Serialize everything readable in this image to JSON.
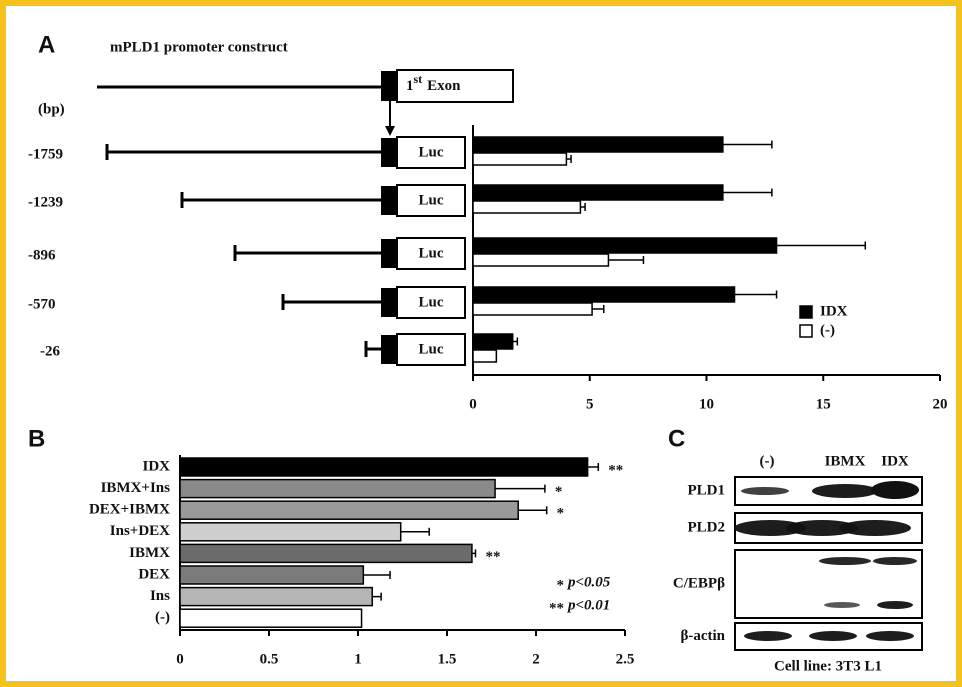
{
  "chart_data": [
    {
      "type": "hbar-grouped",
      "panel_label": "A",
      "construct_title": "mPLD1 promoter construct",
      "bp_unit": "(bp)",
      "exon_label": {
        "number": "1",
        "suffix": "st",
        "word": "Exon"
      },
      "reporter_label": "Luc",
      "categories": [
        "-1759",
        "-1239",
        "-896",
        "-570",
        "-26"
      ],
      "series": [
        {
          "name": "IDX",
          "color": "#000000",
          "values": [
            10.7,
            10.7,
            13.0,
            11.2,
            1.7
          ],
          "errors": [
            2.1,
            2.1,
            3.8,
            1.8,
            0.2
          ]
        },
        {
          "name": "(-)",
          "color": "#ffffff",
          "values": [
            4.0,
            4.6,
            5.8,
            5.1,
            1.0
          ],
          "errors": [
            0.2,
            0.2,
            1.5,
            0.5,
            0
          ]
        }
      ],
      "xlim": [
        0,
        20
      ],
      "xticks": [
        0,
        5,
        10,
        15,
        20
      ]
    },
    {
      "type": "hbar",
      "panel_label": "B",
      "categories": [
        "IDX",
        "IBMX+Ins",
        "DEX+IBMX",
        "Ins+DEX",
        "IBMX",
        "DEX",
        "Ins",
        "(-)"
      ],
      "values": [
        2.29,
        1.77,
        1.9,
        1.24,
        1.64,
        1.03,
        1.08,
        1.02
      ],
      "errors": [
        0.06,
        0.28,
        0.16,
        0.16,
        0.02,
        0.15,
        0.05,
        0
      ],
      "colors": [
        "#000000",
        "#8a8a8a",
        "#9a9a9a",
        "#cfcfcf",
        "#6b6b6b",
        "#7a7a7a",
        "#b5b5b5",
        "#ffffff"
      ],
      "annotations": [
        "**",
        "*",
        "*",
        null,
        "**",
        null,
        null,
        null
      ],
      "notes": [
        {
          "star": "*",
          "text": "p<0.05"
        },
        {
          "star": "**",
          "text": "p<0.01"
        }
      ],
      "xlim": [
        0,
        2.5
      ],
      "xticks": [
        0,
        0.5,
        1,
        1.5,
        2,
        2.5
      ]
    }
  ],
  "blot": {
    "panel_label": "C",
    "lanes": [
      "(-)",
      "IBMX",
      "IDX"
    ],
    "rows": [
      "PLD1",
      "PLD2",
      "C/EBPβ",
      "β-actin"
    ],
    "caption": "Cell line: 3T3 L1"
  }
}
